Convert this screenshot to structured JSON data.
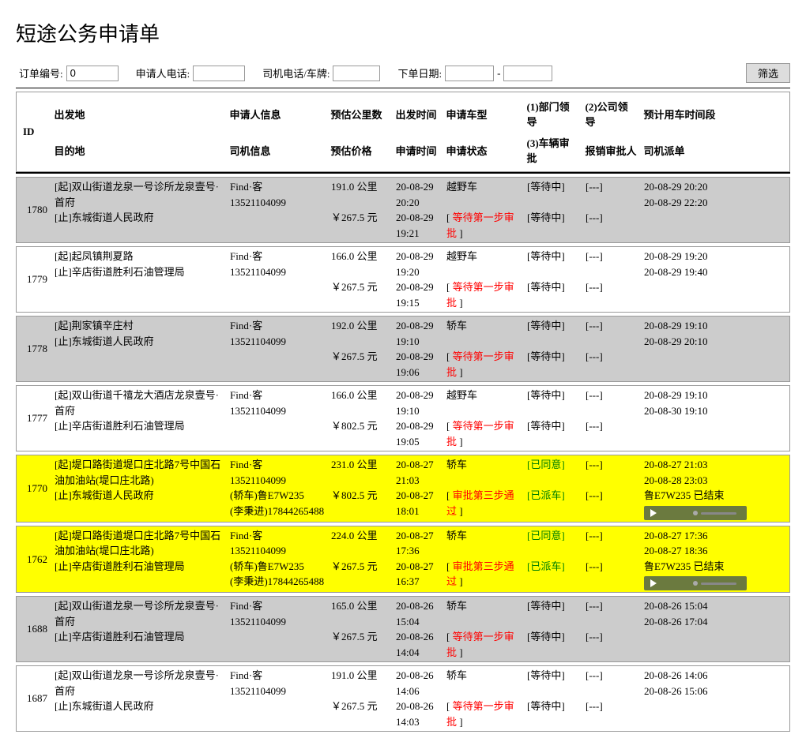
{
  "title": "短途公务申请单",
  "filters": {
    "order_label": "订单编号:",
    "order_value": "0",
    "applicant_phone_label": "申请人电话:",
    "driver_phone_label": "司机电话/车牌:",
    "date_label": "下单日期:",
    "date_sep": "-",
    "filter_btn": "筛选"
  },
  "headers": {
    "id": "ID",
    "origin": "出发地",
    "dest": "目的地",
    "applicant": "申请人信息",
    "driver": "司机信息",
    "est_km": "预估公里数",
    "est_price": "预估价格",
    "depart_time": "出发时间",
    "apply_time": "申请时间",
    "car_type": "申请车型",
    "status": "申请状态",
    "s1": "(1)部门领导",
    "s3": "(3)车辆审批",
    "s2": "(2)公司领导",
    "s4": "报销审批人",
    "time_range": "预计用车时间段",
    "dispatch": "司机派单"
  },
  "rows": [
    {
      "id": "1780",
      "bg": "gray",
      "origin": "[起]双山街道龙泉一号诊所龙泉壹号·首府",
      "dest": "[止]东城街道人民政府",
      "applicant": "Find·客",
      "applicant_phone": "13521104099",
      "driver1": "",
      "driver2": "",
      "km": "191.0 公里",
      "price": "￥267.5 元",
      "depart1": "20-08-29",
      "depart2": "20:20",
      "apply1": "20-08-29",
      "apply2": "19:21",
      "car": "越野车",
      "status": "等待第一步审批",
      "status_cls": "red",
      "p1": "[等待中]",
      "p1_cls": "",
      "p3": "[等待中]",
      "p3_cls": "",
      "p2": "[---]",
      "p4": "[---]",
      "t1": "20-08-29 20:20",
      "t2": "20-08-29 22:20",
      "disp": "",
      "audio": false
    },
    {
      "id": "1779",
      "bg": "",
      "origin": "[起]起凤镇荆夏路",
      "dest": "[止]辛店街道胜利石油管理局",
      "applicant": "Find·客",
      "applicant_phone": "13521104099",
      "driver1": "",
      "driver2": "",
      "km": "166.0 公里",
      "price": "￥267.5 元",
      "depart1": "20-08-29",
      "depart2": "19:20",
      "apply1": "20-08-29",
      "apply2": "19:15",
      "car": "越野车",
      "status": "等待第一步审批",
      "status_cls": "red",
      "p1": "[等待中]",
      "p1_cls": "",
      "p3": "[等待中]",
      "p3_cls": "",
      "p2": "[---]",
      "p4": "[---]",
      "t1": "20-08-29 19:20",
      "t2": "20-08-29 19:40",
      "disp": "",
      "audio": false
    },
    {
      "id": "1778",
      "bg": "gray",
      "origin": "[起]荆家镇辛庄村",
      "dest": "[止]东城街道人民政府",
      "applicant": "Find·客",
      "applicant_phone": "13521104099",
      "driver1": "",
      "driver2": "",
      "km": "192.0 公里",
      "price": "￥267.5 元",
      "depart1": "20-08-29",
      "depart2": "19:10",
      "apply1": "20-08-29",
      "apply2": "19:06",
      "car": "轿车",
      "status": "等待第一步审批",
      "status_cls": "red",
      "p1": "[等待中]",
      "p1_cls": "",
      "p3": "[等待中]",
      "p3_cls": "",
      "p2": "[---]",
      "p4": "[---]",
      "t1": "20-08-29 19:10",
      "t2": "20-08-29 20:10",
      "disp": "",
      "audio": false
    },
    {
      "id": "1777",
      "bg": "",
      "origin": "[起]双山街道千禧龙大酒店龙泉壹号·首府",
      "dest": "[止]辛店街道胜利石油管理局",
      "applicant": "Find·客",
      "applicant_phone": "13521104099",
      "driver1": "",
      "driver2": "",
      "km": "166.0 公里",
      "price": "￥802.5 元",
      "depart1": "20-08-29",
      "depart2": "19:10",
      "apply1": "20-08-29",
      "apply2": "19:05",
      "car": "越野车",
      "status": "等待第一步审批",
      "status_cls": "red",
      "p1": "[等待中]",
      "p1_cls": "",
      "p3": "[等待中]",
      "p3_cls": "",
      "p2": "[---]",
      "p4": "[---]",
      "t1": "20-08-29 19:10",
      "t2": "20-08-30 19:10",
      "disp": "",
      "audio": false
    },
    {
      "id": "1770",
      "bg": "yellow",
      "origin": "[起]堤口路街道堤口庄北路7号中国石油加油站(堤口庄北路)",
      "dest": "[止]东城街道人民政府",
      "applicant": "Find·客",
      "applicant_phone": "13521104099",
      "driver1": "(轿车)鲁E7W235",
      "driver2": "(李秉进)17844265488",
      "km": "231.0 公里",
      "price": "￥802.5 元",
      "depart1": "20-08-27",
      "depart2": "21:03",
      "apply1": "20-08-27",
      "apply2": "18:01",
      "car": "轿车",
      "status": "审批第三步通过",
      "status_cls": "red",
      "p1": "[已同意]",
      "p1_cls": "green",
      "p3": "[已派车]",
      "p3_cls": "green",
      "p2": "[---]",
      "p4": "[---]",
      "t1": "20-08-27 21:03",
      "t2": "20-08-28 23:03",
      "disp": "鲁E7W235 已结束",
      "audio": true
    },
    {
      "id": "1762",
      "bg": "yellow",
      "origin": "[起]堤口路街道堤口庄北路7号中国石油加油站(堤口庄北路)",
      "dest": "[止]辛店街道胜利石油管理局",
      "applicant": "Find·客",
      "applicant_phone": "13521104099",
      "driver1": "(轿车)鲁E7W235",
      "driver2": "(李秉进)17844265488",
      "km": "224.0 公里",
      "price": "￥267.5 元",
      "depart1": "20-08-27",
      "depart2": "17:36",
      "apply1": "20-08-27",
      "apply2": "16:37",
      "car": "轿车",
      "status": "审批第三步通过",
      "status_cls": "red",
      "p1": "[已同意]",
      "p1_cls": "green",
      "p3": "[已派车]",
      "p3_cls": "green",
      "p2": "[---]",
      "p4": "[---]",
      "t1": "20-08-27 17:36",
      "t2": "20-08-27 18:36",
      "disp": "鲁E7W235 已结束",
      "audio": true
    },
    {
      "id": "1688",
      "bg": "gray",
      "origin": "[起]双山街道龙泉一号诊所龙泉壹号·首府",
      "dest": "[止]辛店街道胜利石油管理局",
      "applicant": "Find·客",
      "applicant_phone": "13521104099",
      "driver1": "",
      "driver2": "",
      "km": "165.0 公里",
      "price": "￥267.5 元",
      "depart1": "20-08-26",
      "depart2": "15:04",
      "apply1": "20-08-26",
      "apply2": "14:04",
      "car": "轿车",
      "status": "等待第一步审批",
      "status_cls": "red",
      "p1": "[等待中]",
      "p1_cls": "",
      "p3": "[等待中]",
      "p3_cls": "",
      "p2": "[---]",
      "p4": "[---]",
      "t1": "20-08-26 15:04",
      "t2": "20-08-26 17:04",
      "disp": "",
      "audio": false
    },
    {
      "id": "1687",
      "bg": "",
      "origin": "[起]双山街道龙泉一号诊所龙泉壹号·首府",
      "dest": "[止]东城街道人民政府",
      "applicant": "Find·客",
      "applicant_phone": "13521104099",
      "driver1": "",
      "driver2": "",
      "km": "191.0 公里",
      "price": "￥267.5 元",
      "depart1": "20-08-26",
      "depart2": "14:06",
      "apply1": "20-08-26",
      "apply2": "14:03",
      "car": "轿车",
      "status": "等待第一步审批",
      "status_cls": "red",
      "p1": "[等待中]",
      "p1_cls": "",
      "p3": "[等待中]",
      "p3_cls": "",
      "p2": "[---]",
      "p4": "[---]",
      "t1": "20-08-26 14:06",
      "t2": "20-08-26 15:06",
      "disp": "",
      "audio": false
    }
  ]
}
